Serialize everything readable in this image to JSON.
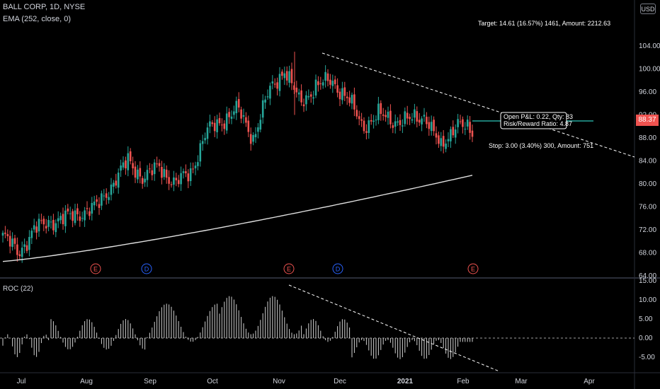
{
  "header": {
    "symbol": "BALL CORP, 1D, NYSE",
    "ema_label": "EMA (252, close, 0)",
    "currency": "USD"
  },
  "price_axis": {
    "ticks": [
      "104.00",
      "100.00",
      "96.00",
      "92.00",
      "88.00",
      "84.00",
      "80.00",
      "76.00",
      "72.00",
      "68.00",
      "64.00"
    ],
    "last_price": "88.37"
  },
  "roc_panel": {
    "label": "ROC (22)",
    "ticks": [
      "15.00",
      "10.00",
      "5.00",
      "0.00",
      "-5.00"
    ]
  },
  "time_axis": {
    "labels": [
      "Jul",
      "Aug",
      "Sep",
      "Oct",
      "Nov",
      "Dec",
      "2021",
      "Feb",
      "Mar",
      "Apr"
    ]
  },
  "events": [
    "E",
    "D",
    "E",
    "D",
    "E"
  ],
  "position": {
    "target_text": "Target: 14.61 (16.57%) 1461, Amount: 2212.63",
    "stop_text": "Stop: 3.00 (3.40%) 300, Amount: 751",
    "pnl_text": "Open P&L: 0.22, Qty: 83",
    "rr_text": "Risk/Reward Ratio: 4.87"
  },
  "colors": {
    "up": "#26a69a",
    "down": "#ef5350",
    "ema": "#e0e0e0",
    "earnings": "#ef5350",
    "dividend": "#2962ff",
    "position_line": "#26a69a"
  },
  "chart_data": {
    "type": "candlestick",
    "title": "BALL CORP, 1D, NYSE",
    "ylim": [
      64,
      104
    ],
    "approx_path": [
      {
        "date": "Jun 22",
        "close": 71
      },
      {
        "date": "Jul 1",
        "close": 68
      },
      {
        "date": "Jul 10",
        "close": 72
      },
      {
        "date": "Jul 20",
        "close": 73.5
      },
      {
        "date": "Aug 1",
        "close": 74
      },
      {
        "date": "Aug 10",
        "close": 75
      },
      {
        "date": "Aug 20",
        "close": 76
      },
      {
        "date": "Sep 1",
        "close": 80
      },
      {
        "date": "Sep 3",
        "close": 84
      },
      {
        "date": "Sep 10",
        "close": 81
      },
      {
        "date": "Sep 20",
        "close": 83
      },
      {
        "date": "Sep 25",
        "close": 80
      },
      {
        "date": "Oct 5",
        "close": 82
      },
      {
        "date": "Oct 10",
        "close": 89
      },
      {
        "date": "Oct 20",
        "close": 91
      },
      {
        "date": "Oct 28",
        "close": 93
      },
      {
        "date": "Nov 2",
        "close": 88
      },
      {
        "date": "Nov 6",
        "close": 96
      },
      {
        "date": "Nov 9",
        "close": 100
      },
      {
        "date": "Nov 12",
        "close": 94
      },
      {
        "date": "Nov 18",
        "close": 97
      },
      {
        "date": "Nov 23",
        "close": 98
      },
      {
        "date": "Dec 1",
        "close": 95
      },
      {
        "date": "Dec 8",
        "close": 90
      },
      {
        "date": "Dec 18",
        "close": 92
      },
      {
        "date": "Jan 4",
        "close": 91
      },
      {
        "date": "Jan 15",
        "close": 91
      },
      {
        "date": "Jan 22",
        "close": 92
      },
      {
        "date": "Jan 28",
        "close": 86
      },
      {
        "date": "Feb 2",
        "close": 91
      },
      {
        "date": "Feb 5",
        "close": 88.37
      }
    ],
    "ema": {
      "start": 66.5,
      "end": 81.5
    },
    "roc": {
      "min": -7,
      "max": 13
    }
  }
}
